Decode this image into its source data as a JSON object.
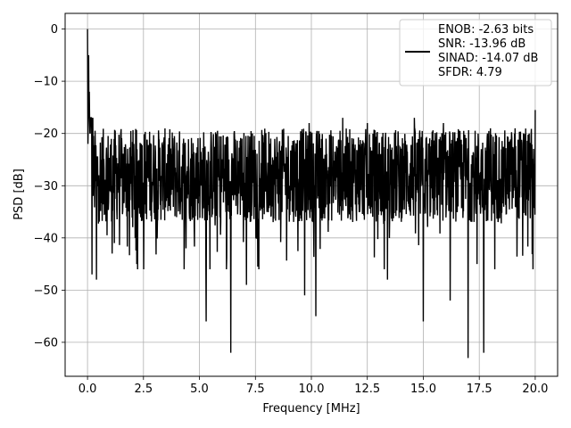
{
  "chart_data": {
    "type": "line",
    "title": "",
    "xlabel": "Frequency [MHz]",
    "ylabel": "PSD [dB]",
    "xlim": [
      -1.0,
      21.0
    ],
    "ylim": [
      -66.5,
      3.0
    ],
    "xticks": [
      0.0,
      2.5,
      5.0,
      7.5,
      10.0,
      12.5,
      15.0,
      17.5,
      20.0
    ],
    "xtick_labels": [
      "0.0",
      "2.5",
      "5.0",
      "7.5",
      "10.0",
      "12.5",
      "15.0",
      "17.5",
      "20.0"
    ],
    "yticks": [
      0,
      -10,
      -20,
      -30,
      -40,
      -50,
      -60
    ],
    "ytick_labels": [
      "0",
      "−10",
      "−20",
      "−30",
      "−40",
      "−50",
      "−60"
    ],
    "grid": true,
    "legend_position": "top-right",
    "line_color": "#000000",
    "series": [
      {
        "name": "ENOB: -2.63 bits\nSNR: -13.96 dB\nSINAD: -14.07 dB\nSFDR: 4.79",
        "approx": "noise-like spectrum, mostly between about -40 and -17 dB",
        "x": [
          0.0,
          0.02,
          0.05,
          0.08,
          0.12,
          0.2,
          0.3,
          0.4,
          0.5,
          1.1,
          1.2,
          2.2,
          2.4,
          4.4,
          5.3,
          6.4,
          6.9,
          7.1,
          9.7,
          9.9,
          10.2,
          11.4,
          12.5,
          13.4,
          14.6,
          15.0,
          15.9,
          16.2,
          17.0,
          17.4,
          17.7,
          18.0,
          19.1,
          19.9,
          20.0
        ],
        "values": [
          0.0,
          -22.0,
          -5.0,
          -12.0,
          -20.0,
          -47.0,
          -24.0,
          -48.0,
          -28.0,
          -43.0,
          -41.0,
          -45.0,
          -22.0,
          -42.0,
          -56.0,
          -62.0,
          -21.0,
          -49.0,
          -51.0,
          -18.0,
          -55.0,
          -17.0,
          -18.0,
          -48.0,
          -17.0,
          -56.0,
          -18.0,
          -52.0,
          -63.0,
          -45.0,
          -62.0,
          -19.0,
          -19.0,
          -46.0,
          -15.5
        ]
      }
    ]
  }
}
